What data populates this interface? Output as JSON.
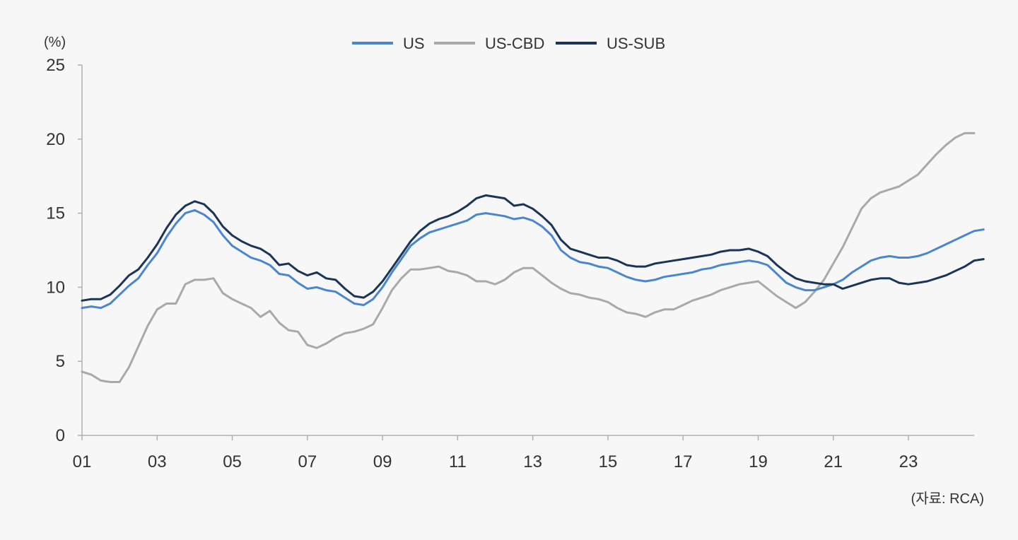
{
  "colors": {
    "US": "#4a86d0",
    "US-CBD": "#a9a9a9",
    "US-SUB": "#1b3558",
    "axis": "#b0b0b0",
    "text": "#333333",
    "background": "#f7f7f7"
  },
  "chart_data": {
    "type": "line",
    "title": "",
    "xlabel": "",
    "ylabel": "",
    "unit_label": "(%)",
    "source": "(자료: RCA)",
    "ylim": [
      0,
      25
    ],
    "y_ticks": [
      "0",
      "5",
      "10",
      "15",
      "20",
      "25"
    ],
    "x_ticks": [
      "01",
      "03",
      "05",
      "07",
      "09",
      "11",
      "13",
      "15",
      "17",
      "19",
      "21",
      "23"
    ],
    "grid": false,
    "legend_position": "top-center",
    "x_start_year": 2001,
    "x_end": 2024.75,
    "x_step": 0.25,
    "series": [
      {
        "name": "US",
        "values": [
          8.6,
          8.7,
          8.6,
          8.9,
          9.5,
          10.1,
          10.6,
          11.5,
          12.3,
          13.4,
          14.3,
          15.0,
          15.2,
          14.9,
          14.4,
          13.5,
          12.8,
          12.4,
          12.0,
          11.8,
          11.5,
          10.9,
          10.8,
          10.3,
          9.9,
          10.0,
          9.8,
          9.7,
          9.3,
          8.9,
          8.8,
          9.2,
          10.0,
          11.0,
          11.9,
          12.8,
          13.3,
          13.7,
          13.9,
          14.1,
          14.3,
          14.5,
          14.9,
          15.0,
          14.9,
          14.8,
          14.6,
          14.7,
          14.5,
          14.1,
          13.5,
          12.5,
          12.0,
          11.7,
          11.6,
          11.4,
          11.3,
          11.0,
          10.7,
          10.5,
          10.4,
          10.5,
          10.7,
          10.8,
          10.9,
          11.0,
          11.2,
          11.3,
          11.5,
          11.6,
          11.7,
          11.8,
          11.7,
          11.5,
          10.9,
          10.3,
          10.0,
          9.8,
          9.8,
          10.0,
          10.2,
          10.5,
          11.0,
          11.4,
          11.8,
          12.0,
          12.1,
          12.0,
          12.0,
          12.1,
          12.3,
          12.6,
          12.9,
          13.2,
          13.5,
          13.8,
          13.9
        ]
      },
      {
        "name": "US-CBD",
        "values": [
          4.3,
          4.1,
          3.7,
          3.6,
          3.6,
          4.6,
          6.0,
          7.4,
          8.5,
          8.9,
          8.9,
          10.2,
          10.5,
          10.5,
          10.6,
          9.6,
          9.2,
          8.9,
          8.6,
          8.0,
          8.4,
          7.6,
          7.1,
          7.0,
          6.1,
          5.9,
          6.2,
          6.6,
          6.9,
          7.0,
          7.2,
          7.5,
          8.6,
          9.8,
          10.6,
          11.2,
          11.2,
          11.3,
          11.4,
          11.1,
          11.0,
          10.8,
          10.4,
          10.4,
          10.2,
          10.5,
          11.0,
          11.3,
          11.3,
          10.8,
          10.3,
          9.9,
          9.6,
          9.5,
          9.3,
          9.2,
          9.0,
          8.6,
          8.3,
          8.2,
          8.0,
          8.3,
          8.5,
          8.5,
          8.8,
          9.1,
          9.3,
          9.5,
          9.8,
          10.0,
          10.2,
          10.3,
          10.4,
          9.9,
          9.4,
          9.0,
          8.6,
          9.0,
          9.7,
          10.5,
          11.6,
          12.7,
          14.0,
          15.3,
          16.0,
          16.4,
          16.6,
          16.8,
          17.2,
          17.6,
          18.3,
          19.0,
          19.6,
          20.1,
          20.4,
          20.4
        ]
      },
      {
        "name": "US-SUB",
        "values": [
          9.1,
          9.2,
          9.2,
          9.5,
          10.1,
          10.8,
          11.2,
          12.0,
          12.9,
          14.0,
          14.9,
          15.5,
          15.8,
          15.6,
          15.0,
          14.1,
          13.5,
          13.1,
          12.8,
          12.6,
          12.2,
          11.5,
          11.6,
          11.1,
          10.8,
          11.0,
          10.6,
          10.5,
          9.9,
          9.4,
          9.3,
          9.7,
          10.4,
          11.3,
          12.2,
          13.1,
          13.8,
          14.3,
          14.6,
          14.8,
          15.1,
          15.5,
          16.0,
          16.2,
          16.1,
          16.0,
          15.5,
          15.6,
          15.3,
          14.8,
          14.2,
          13.2,
          12.6,
          12.4,
          12.2,
          12.0,
          12.0,
          11.8,
          11.5,
          11.4,
          11.4,
          11.6,
          11.7,
          11.8,
          11.9,
          12.0,
          12.1,
          12.2,
          12.4,
          12.5,
          12.5,
          12.6,
          12.4,
          12.1,
          11.5,
          11.0,
          10.6,
          10.4,
          10.3,
          10.2,
          10.2,
          9.9,
          10.1,
          10.3,
          10.5,
          10.6,
          10.6,
          10.3,
          10.2,
          10.3,
          10.4,
          10.6,
          10.8,
          11.1,
          11.4,
          11.8,
          11.9
        ]
      }
    ]
  }
}
